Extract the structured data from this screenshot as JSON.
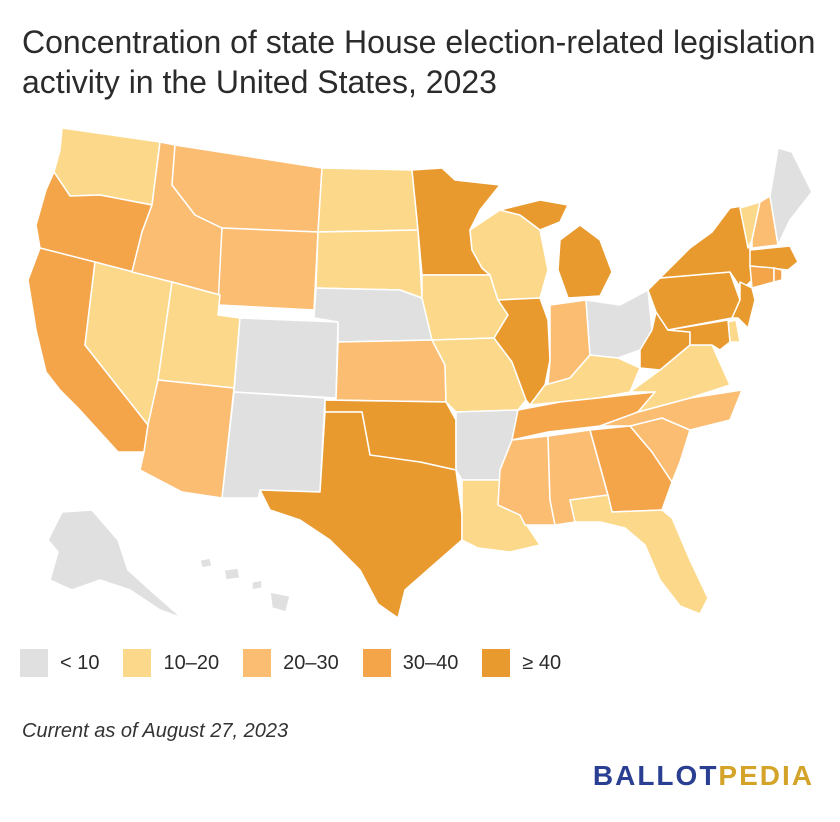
{
  "title": "Concentration of state House election-related legislation activity in the United States, 2023",
  "note": "Current as of August 27, 2023",
  "brand": {
    "part1": "BALLOT",
    "part2": "PEDIA"
  },
  "colors": {
    "c0": "#e0e0e0",
    "c1": "#fcd98a",
    "c2": "#fbbd72",
    "c3": "#f4a54a",
    "c4": "#e89a2f"
  },
  "legend": [
    {
      "label": "< 10",
      "color_key": "c0"
    },
    {
      "label": "10–20",
      "color_key": "c1"
    },
    {
      "label": "20–30",
      "color_key": "c2"
    },
    {
      "label": "30–40",
      "color_key": "c3"
    },
    {
      "label": "≥ 40",
      "color_key": "c4"
    }
  ],
  "states": [
    {
      "name": "WA",
      "bin": "c1"
    },
    {
      "name": "OR",
      "bin": "c3"
    },
    {
      "name": "CA",
      "bin": "c3"
    },
    {
      "name": "NV",
      "bin": "c1"
    },
    {
      "name": "ID",
      "bin": "c2"
    },
    {
      "name": "MT",
      "bin": "c2"
    },
    {
      "name": "WY",
      "bin": "c2"
    },
    {
      "name": "UT",
      "bin": "c1"
    },
    {
      "name": "AZ",
      "bin": "c2"
    },
    {
      "name": "CO",
      "bin": "c0"
    },
    {
      "name": "NM",
      "bin": "c0"
    },
    {
      "name": "ND",
      "bin": "c1"
    },
    {
      "name": "SD",
      "bin": "c1"
    },
    {
      "name": "NE",
      "bin": "c0"
    },
    {
      "name": "KS",
      "bin": "c2"
    },
    {
      "name": "OK",
      "bin": "c4"
    },
    {
      "name": "TX",
      "bin": "c4"
    },
    {
      "name": "MN",
      "bin": "c4"
    },
    {
      "name": "IA",
      "bin": "c1"
    },
    {
      "name": "MO",
      "bin": "c1"
    },
    {
      "name": "AR",
      "bin": "c0"
    },
    {
      "name": "LA",
      "bin": "c1"
    },
    {
      "name": "WI",
      "bin": "c1"
    },
    {
      "name": "IL",
      "bin": "c4"
    },
    {
      "name": "MI",
      "bin": "c4"
    },
    {
      "name": "IN",
      "bin": "c2"
    },
    {
      "name": "OH",
      "bin": "c0"
    },
    {
      "name": "KY",
      "bin": "c1"
    },
    {
      "name": "TN",
      "bin": "c3"
    },
    {
      "name": "MS",
      "bin": "c2"
    },
    {
      "name": "AL",
      "bin": "c2"
    },
    {
      "name": "GA",
      "bin": "c3"
    },
    {
      "name": "FL",
      "bin": "c1"
    },
    {
      "name": "SC",
      "bin": "c2"
    },
    {
      "name": "NC",
      "bin": "c2"
    },
    {
      "name": "VA",
      "bin": "c1"
    },
    {
      "name": "WV",
      "bin": "c4"
    },
    {
      "name": "PA",
      "bin": "c4"
    },
    {
      "name": "NY",
      "bin": "c4"
    },
    {
      "name": "NJ",
      "bin": "c4"
    },
    {
      "name": "DE",
      "bin": "c1"
    },
    {
      "name": "MD",
      "bin": "c4"
    },
    {
      "name": "VT",
      "bin": "c1"
    },
    {
      "name": "NH",
      "bin": "c2"
    },
    {
      "name": "ME",
      "bin": "c0"
    },
    {
      "name": "MA",
      "bin": "c4"
    },
    {
      "name": "CT",
      "bin": "c3"
    },
    {
      "name": "RI",
      "bin": "c3"
    },
    {
      "name": "AK",
      "bin": "c0"
    },
    {
      "name": "HI",
      "bin": "c0"
    }
  ]
}
